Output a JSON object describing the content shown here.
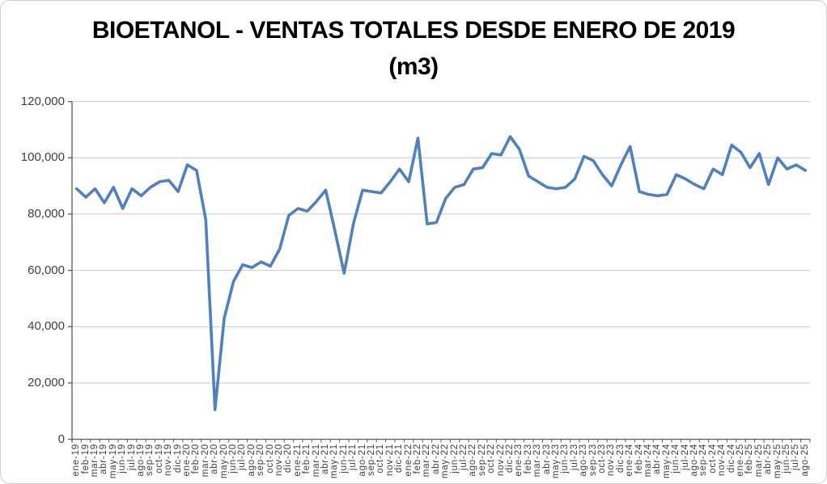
{
  "title": {
    "line1": "BIOETANOL - VENTAS TOTALES DESDE ENERO DE 2019",
    "line2": "(m3)"
  },
  "colors": {
    "line": "#4F81BD",
    "gridline": "#C9C9C9",
    "axis": "#595959",
    "tick": "#595959",
    "label_text": "#404040",
    "title_text": "#000000",
    "chart_border": "#CFCFCF",
    "background": "#FFFFFF"
  },
  "y_axis": {
    "tick_labels": [
      "0",
      "20,000",
      "40,000",
      "60,000",
      "80,000",
      "100,000",
      "120,000"
    ],
    "tick_values": [
      0,
      20000,
      40000,
      60000,
      80000,
      100000,
      120000
    ]
  },
  "chart_data": {
    "type": "line",
    "title": "BIOETANOL - VENTAS TOTALES DESDE ENERO DE 2019 (m3)",
    "xlabel": "",
    "ylabel": "",
    "ylim": [
      0,
      120000
    ],
    "ytick_interval": 20000,
    "grid": true,
    "legend": false,
    "line_color": "#4F81BD",
    "categories": [
      "ene-19",
      "feb-19",
      "mar-19",
      "abr-19",
      "may-19",
      "jun-19",
      "jul-19",
      "ago-19",
      "sep-19",
      "oct-19",
      "nov-19",
      "dic-19",
      "ene-20",
      "feb-20",
      "mar-20",
      "abr-20",
      "may-20",
      "jun-20",
      "jul-20",
      "ago-20",
      "sep-20",
      "oct-20",
      "nov-20",
      "dic-20",
      "ene-21",
      "feb-21",
      "mar-21",
      "abr-21",
      "may-21",
      "jun-21",
      "jul-21",
      "ago-21",
      "sep-21",
      "oct-21",
      "nov-21",
      "dic-21",
      "ene-22",
      "feb-22",
      "mar-22",
      "abr-22",
      "may-22",
      "jun-22",
      "jul-22",
      "ago-22",
      "sep-22",
      "oct-22",
      "nov-22",
      "dic-22",
      "ene-23",
      "feb-23",
      "mar-23",
      "abr-23",
      "may-23",
      "jun-23",
      "jul-23",
      "ago-23",
      "sep-23",
      "oct-23",
      "nov-23",
      "dic-23",
      "ene-24",
      "feb-24",
      "mar-24",
      "abr-24",
      "may-24",
      "jun-24",
      "jul-24",
      "ago-24",
      "sep-24",
      "oct-24",
      "nov-24",
      "dic-24",
      "ene-25",
      "feb-25",
      "mar-25",
      "abr-25",
      "may-25",
      "jun-25",
      "jul-25",
      "ago-25"
    ],
    "values": [
      89000,
      86000,
      89000,
      84000,
      89500,
      82000,
      89000,
      86500,
      89500,
      91500,
      92000,
      88000,
      97500,
      95500,
      78000,
      10500,
      43000,
      56000,
      62000,
      61000,
      63000,
      61500,
      67500,
      79500,
      82000,
      81000,
      84500,
      88500,
      74000,
      59000,
      76500,
      88500,
      88000,
      87500,
      91500,
      96000,
      91500,
      107000,
      76500,
      77000,
      85500,
      89500,
      90500,
      96000,
      96500,
      101500,
      101000,
      107500,
      103000,
      93500,
      91500,
      89500,
      89000,
      89500,
      92500,
      100500,
      99000,
      94000,
      90000,
      97500,
      104000,
      88000,
      87000,
      86500,
      87000,
      94000,
      92500,
      90500,
      89000,
      96000,
      94000,
      104500,
      102000,
      96500,
      101500,
      90500,
      100000,
      96000,
      97500,
      95500
    ]
  }
}
